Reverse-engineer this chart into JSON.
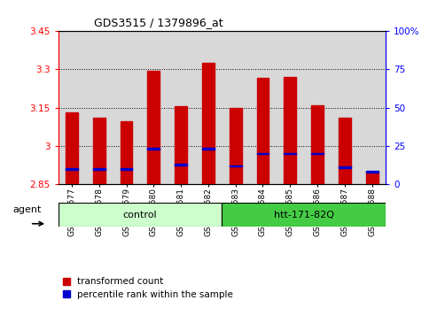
{
  "title": "GDS3515 / 1379896_at",
  "categories": [
    "GSM313577",
    "GSM313578",
    "GSM313579",
    "GSM313580",
    "GSM313581",
    "GSM313582",
    "GSM313583",
    "GSM313584",
    "GSM313585",
    "GSM313586",
    "GSM313587",
    "GSM313588"
  ],
  "transformed_counts": [
    3.13,
    3.11,
    3.095,
    3.295,
    3.155,
    3.325,
    3.15,
    3.265,
    3.27,
    3.16,
    3.11,
    2.9
  ],
  "percentile_ranks": [
    10,
    10,
    10,
    23,
    13,
    23,
    12,
    20,
    20,
    20,
    11,
    8
  ],
  "y_min": 2.85,
  "y_max": 3.45,
  "y_ticks": [
    2.85,
    3.0,
    3.15,
    3.3,
    3.45
  ],
  "y_tick_labels": [
    "2.85",
    "3",
    "3.15",
    "3.3",
    "3.45"
  ],
  "right_y_ticks": [
    0,
    25,
    50,
    75,
    100
  ],
  "right_y_labels": [
    "0",
    "25",
    "50",
    "75",
    "100%"
  ],
  "gridlines": [
    3.0,
    3.15,
    3.3
  ],
  "bar_color": "#cc0000",
  "percentile_color": "#0000cc",
  "groups": [
    {
      "label": "control",
      "start": 0,
      "end": 5,
      "color": "#ccffcc"
    },
    {
      "label": "htt-171-82Q",
      "start": 6,
      "end": 11,
      "color": "#44cc44"
    }
  ],
  "agent_label": "agent",
  "legend": [
    {
      "label": "transformed count",
      "color": "#cc0000"
    },
    {
      "label": "percentile rank within the sample",
      "color": "#0000cc"
    }
  ],
  "bar_width": 0.45,
  "background_color": "#ffffff",
  "plot_bg_color": "#d8d8d8"
}
